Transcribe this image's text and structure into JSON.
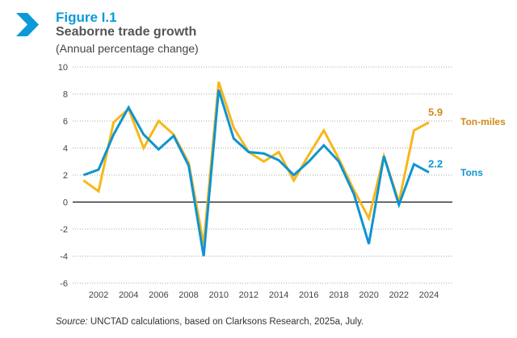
{
  "header": {
    "figure_label": "Figure I.1",
    "source_label": "Source:",
    "source_text": " UNCTAD calculations, based on Clarksons Research, 2025a, July."
  },
  "colors": {
    "tons": "#0e94d1",
    "ton_miles": "#f7b718",
    "ton_miles_label": "#d08a1a",
    "accent": "#0b9ad9"
  },
  "chart_data": {
    "type": "line",
    "title": "Seaborne trade growth",
    "subtitle": "(Annual percentage change)",
    "xlabel": "",
    "ylabel": "",
    "ylim": [
      -6,
      10
    ],
    "yticks": [
      10,
      8,
      6,
      4,
      2,
      0,
      -2,
      -4,
      -6
    ],
    "xticks": [
      2002,
      2004,
      2006,
      2008,
      2010,
      2012,
      2014,
      2016,
      2018,
      2020,
      2022,
      2024
    ],
    "grid": true,
    "x": [
      2001,
      2002,
      2003,
      2004,
      2005,
      2006,
      2007,
      2008,
      2009,
      2010,
      2011,
      2012,
      2013,
      2014,
      2015,
      2016,
      2017,
      2018,
      2019,
      2020,
      2021,
      2022,
      2023,
      2024
    ],
    "series": [
      {
        "name": "Ton-miles",
        "end_label": "5.9",
        "values": [
          1.6,
          0.8,
          5.9,
          6.9,
          4.0,
          6.0,
          5.0,
          2.9,
          -3.1,
          8.9,
          5.5,
          3.7,
          3.0,
          3.7,
          1.6,
          3.5,
          5.3,
          3.2,
          0.9,
          -1.2,
          3.4,
          0.0,
          5.3,
          5.9
        ]
      },
      {
        "name": "Tons",
        "end_label": "2.2",
        "values": [
          2.0,
          2.4,
          5.0,
          7.0,
          5.0,
          3.9,
          4.9,
          2.7,
          -4.0,
          8.3,
          4.7,
          3.7,
          3.6,
          3.1,
          2.0,
          3.0,
          4.2,
          3.0,
          0.6,
          -3.1,
          3.4,
          -0.2,
          2.8,
          2.2
        ]
      }
    ]
  }
}
